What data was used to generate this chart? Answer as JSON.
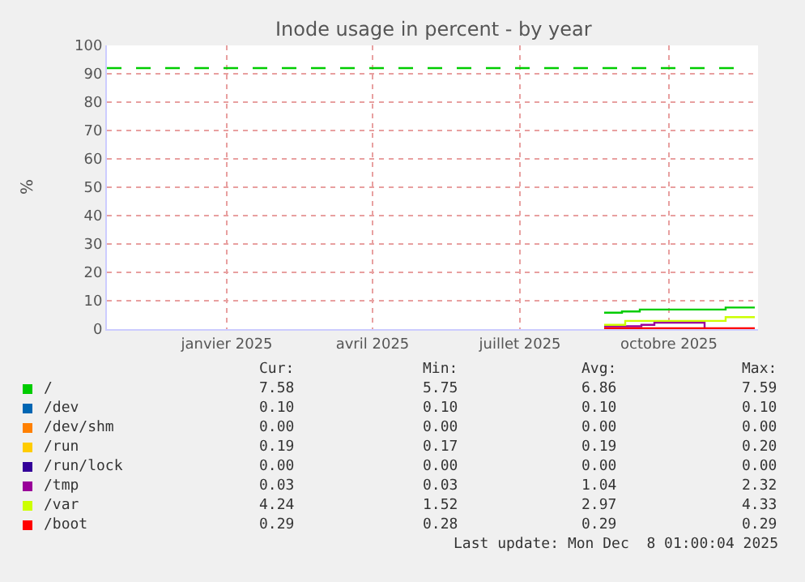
{
  "chart_data": {
    "type": "step",
    "title": "Inode usage in percent - by year",
    "ylabel": "%",
    "xlim": [
      "2024-10-19",
      "2025-11-25"
    ],
    "xticks": [
      {
        "value": "2025-01-01",
        "label": "janvier 2025"
      },
      {
        "value": "2025-04-01",
        "label": "avril 2025"
      },
      {
        "value": "2025-07-01",
        "label": "juillet 2025"
      },
      {
        "value": "2025-10-01",
        "label": "octobre 2025"
      }
    ],
    "ylim": [
      0,
      100
    ],
    "yticks": [
      0,
      10,
      20,
      30,
      40,
      50,
      60,
      70,
      80,
      90,
      100
    ],
    "grid": true,
    "line_style": "solid",
    "legend": "bottom",
    "series": [
      {
        "name": "/",
        "color": "#00cc00",
        "x": [
          "2025-08-22",
          "2025-09-02",
          "2025-09-13",
          "2025-11-05",
          "2025-11-23"
        ],
        "values": [
          5.8,
          6.2,
          6.9,
          7.6,
          7.6
        ]
      },
      {
        "name": "/dev",
        "color": "#0066b3"
      },
      {
        "name": "/dev/shm",
        "color": "#ff8000"
      },
      {
        "name": "/run",
        "color": "#ffcc00"
      },
      {
        "name": "/run/lock",
        "color": "#330099"
      },
      {
        "name": "/tmp",
        "color": "#990099",
        "x": [
          "2025-08-22",
          "2025-09-14",
          "2025-09-22",
          "2025-10-23",
          "2025-11-23"
        ],
        "values": [
          1.0,
          1.5,
          2.3,
          0.0,
          0.0
        ]
      },
      {
        "name": "/var",
        "color": "#ccff00",
        "x": [
          "2025-08-22",
          "2025-09-04",
          "2025-11-05",
          "2025-11-23"
        ],
        "values": [
          1.5,
          2.9,
          4.2,
          4.2
        ]
      },
      {
        "name": "/boot",
        "color": "#ff0000",
        "x": [
          "2025-08-22",
          "2025-11-23"
        ],
        "values": [
          0.3,
          0.3
        ]
      }
    ],
    "ref_lines": [
      {
        "axis": "y",
        "value": 92,
        "color": "#00cc00",
        "line_style": "dashed"
      }
    ],
    "annotations": [
      "Cur:",
      "Min:",
      "Avg:",
      "Max:",
      "7.58",
      "5.75",
      "6.86",
      "7.59",
      "0.10",
      "0.10",
      "0.10",
      "0.10",
      "0.00",
      "0.00",
      "0.00",
      "0.00",
      "0.19",
      "0.17",
      "0.19",
      "0.20",
      "0.00",
      "0.00",
      "0.00",
      "0.00",
      "0.03",
      "0.03",
      "1.04",
      "2.32",
      "4.24",
      "1.52",
      "2.97",
      "4.33",
      "0.29",
      "0.28",
      "0.29",
      "0.29",
      "Last update: Mon Dec  8 01:00:04 2025"
    ]
  }
}
